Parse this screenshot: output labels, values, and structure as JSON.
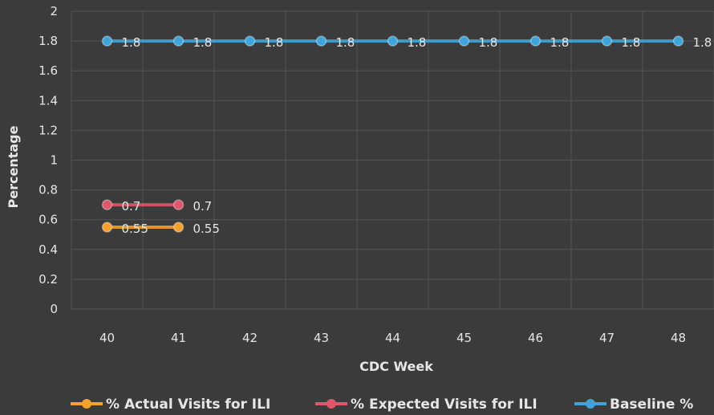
{
  "chart_data": {
    "type": "line",
    "xlabel": "CDC Week",
    "ylabel": "Percentage",
    "categories": [
      "40",
      "41",
      "42",
      "43",
      "44",
      "45",
      "46",
      "47",
      "48"
    ],
    "ylim": [
      0,
      2
    ],
    "yticks": [
      "0",
      "0.2",
      "0.4",
      "0.6",
      "0.8",
      "1",
      "1.2",
      "1.4",
      "1.6",
      "1.8",
      "2"
    ],
    "grid": true,
    "legend": "bottom",
    "series": [
      {
        "name": "% Actual Visits for ILI",
        "color": "#f5a02a",
        "values": [
          0.55,
          0.55,
          null,
          null,
          null,
          null,
          null,
          null,
          null
        ],
        "labels": [
          "0.55",
          "0.55",
          "",
          "",
          "",
          "",
          "",
          "",
          ""
        ]
      },
      {
        "name": "% Expected Visits for ILI",
        "color": "#e0566a",
        "values": [
          0.7,
          0.7,
          null,
          null,
          null,
          null,
          null,
          null,
          null
        ],
        "labels": [
          "0.7",
          "0.7",
          "",
          "",
          "",
          "",
          "",
          "",
          ""
        ]
      },
      {
        "name": "Baseline %",
        "color": "#3da5dc",
        "values": [
          1.8,
          1.8,
          1.8,
          1.8,
          1.8,
          1.8,
          1.8,
          1.8,
          1.8
        ],
        "labels": [
          "1.8",
          "1.8",
          "1.8",
          "1.8",
          "1.8",
          "1.8",
          "1.8",
          "1.8",
          "1.8"
        ]
      }
    ]
  }
}
